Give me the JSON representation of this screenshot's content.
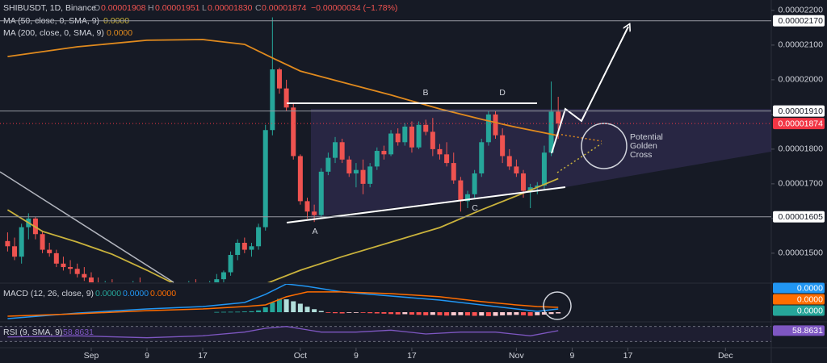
{
  "chart_data": {
    "type": "candlestick",
    "header": {
      "symbol": "SHIBUSDT, 1D, Binance",
      "ohlc": [
        {
          "key": "O",
          "value": "0.00001908"
        },
        {
          "key": "H",
          "value": "0.00001951"
        },
        {
          "key": "L",
          "value": "0.00001830"
        },
        {
          "key": "C",
          "value": "0.00001874"
        }
      ],
      "change": "−0.00000034 (−1.78%)"
    },
    "xlim": [
      -1.09,
      109.57
    ],
    "xticks": [
      {
        "value": 12,
        "label": "Sep"
      },
      {
        "value": 20,
        "label": "9"
      },
      {
        "value": 28,
        "label": "17"
      },
      {
        "value": 42,
        "label": "Oct"
      },
      {
        "value": 50,
        "label": "9"
      },
      {
        "value": 58,
        "label": "17"
      },
      {
        "value": 73,
        "label": "Nov"
      },
      {
        "value": 81,
        "label": "9"
      },
      {
        "value": 89,
        "label": "17"
      },
      {
        "value": 103,
        "label": "Dec"
      }
    ],
    "ylim": [
      1.416e-05,
      2.23e-05
    ],
    "yticks": [
      {
        "value": 2.2e-05,
        "label": "0.00002200"
      },
      {
        "value": 2.1e-05,
        "label": "0.00002100"
      },
      {
        "value": 2e-05,
        "label": "0.00002000"
      },
      {
        "value": 1.9e-05,
        "label": "0.00001900"
      },
      {
        "value": 1.8e-05,
        "label": "0.00001800"
      },
      {
        "value": 1.7e-05,
        "label": "0.00001700"
      },
      {
        "value": 1.6e-05,
        "label": "0.00001600"
      },
      {
        "value": 1.5e-05,
        "label": "0.00001500"
      }
    ],
    "grid": false,
    "up_color": "#26a69a",
    "down_color": "#ef5350",
    "open": [
      1.535e-05,
      1.52e-05,
      1.49e-05,
      1.575e-05,
      1.6e-05,
      1.555e-05,
      1.51e-05,
      1.5e-05,
      1.47e-05,
      1.46e-05,
      1.455e-05,
      1.44e-05,
      1.43e-05,
      1.415e-05,
      1.4e-05,
      1.41e-05,
      1.405e-05,
      1.39e-05,
      1.4e-05,
      1.415e-05,
      1.4e-05,
      1.38e-05,
      1.395e-05,
      1.39e-05,
      1.37e-05,
      1.385e-05,
      1.395e-05,
      1.41e-05,
      1.4e-05,
      1.405e-05,
      1.41e-05,
      1.425e-05,
      1.445e-05,
      1.495e-05,
      1.53e-05,
      1.51e-05,
      1.52e-05,
      1.575e-05,
      1.855e-05,
      2.03e-05,
      1.975e-05,
      1.92e-05,
      1.78e-05,
      1.65e-05,
      1.62e-05,
      1.61e-05,
      1.735e-05,
      1.775e-05,
      1.82e-05,
      1.77e-05,
      1.73e-05,
      1.74e-05,
      1.7e-05,
      1.75e-05,
      1.795e-05,
      1.785e-05,
      1.845e-05,
      1.82e-05,
      1.865e-05,
      1.805e-05,
      1.87e-05,
      1.85e-05,
      1.8e-05,
      1.785e-05,
      1.76e-05,
      1.71e-05,
      1.65e-05,
      1.67e-05,
      1.73e-05,
      1.82e-05,
      1.9e-05,
      1.84e-05,
      1.78e-05,
      1.75e-05,
      1.73e-05,
      1.68e-05,
      1.69e-05,
      1.695e-05,
      1.79e-05,
      1.908e-05
    ],
    "high": [
      1.56e-05,
      1.545e-05,
      1.585e-05,
      1.615e-05,
      1.605e-05,
      1.565e-05,
      1.53e-05,
      1.51e-05,
      1.49e-05,
      1.48e-05,
      1.47e-05,
      1.46e-05,
      1.445e-05,
      1.43e-05,
      1.42e-05,
      1.425e-05,
      1.415e-05,
      1.41e-05,
      1.42e-05,
      1.43e-05,
      1.41e-05,
      1.4e-05,
      1.41e-05,
      1.4e-05,
      1.39e-05,
      1.405e-05,
      1.42e-05,
      1.425e-05,
      1.415e-05,
      1.42e-05,
      1.44e-05,
      1.45e-05,
      1.505e-05,
      1.54e-05,
      1.545e-05,
      1.53e-05,
      1.585e-05,
      1.87e-05,
      2.18e-05,
      2.035e-05,
      2e-05,
      1.93e-05,
      1.785e-05,
      1.66e-05,
      1.64e-05,
      1.745e-05,
      1.79e-05,
      1.835e-05,
      1.83e-05,
      1.78e-05,
      1.76e-05,
      1.77e-05,
      1.76e-05,
      1.805e-05,
      1.81e-05,
      1.855e-05,
      1.86e-05,
      1.875e-05,
      1.88e-05,
      1.88e-05,
      1.885e-05,
      1.89e-05,
      1.815e-05,
      1.82e-05,
      1.79e-05,
      1.72e-05,
      1.68e-05,
      1.74e-05,
      1.83e-05,
      1.91e-05,
      1.91e-05,
      1.86e-05,
      1.8e-05,
      1.77e-05,
      1.74e-05,
      1.7e-05,
      1.705e-05,
      1.81e-05,
      1.995e-05,
      1.951e-05
    ],
    "low": [
      1.505e-05,
      1.48e-05,
      1.47e-05,
      1.54e-05,
      1.54e-05,
      1.5e-05,
      1.49e-05,
      1.46e-05,
      1.45e-05,
      1.44e-05,
      1.43e-05,
      1.42e-05,
      1.4e-05,
      1.39e-05,
      1.385e-05,
      1.395e-05,
      1.38e-05,
      1.375e-05,
      1.39e-05,
      1.395e-05,
      1.37e-05,
      1.365e-05,
      1.38e-05,
      1.36e-05,
      1.355e-05,
      1.375e-05,
      1.385e-05,
      1.39e-05,
      1.385e-05,
      1.395e-05,
      1.4e-05,
      1.41e-05,
      1.435e-05,
      1.48e-05,
      1.5e-05,
      1.49e-05,
      1.51e-05,
      1.565e-05,
      1.84e-05,
      1.96e-05,
      1.91e-05,
      1.77e-05,
      1.64e-05,
      1.6e-05,
      1.59e-05,
      1.605e-05,
      1.725e-05,
      1.76e-05,
      1.76e-05,
      1.72e-05,
      1.69e-05,
      1.67e-05,
      1.69e-05,
      1.74e-05,
      1.77e-05,
      1.78e-05,
      1.81e-05,
      1.81e-05,
      1.79e-05,
      1.8e-05,
      1.84e-05,
      1.78e-05,
      1.77e-05,
      1.75e-05,
      1.7e-05,
      1.62e-05,
      1.63e-05,
      1.66e-05,
      1.72e-05,
      1.81e-05,
      1.83e-05,
      1.76e-05,
      1.74e-05,
      1.72e-05,
      1.66e-05,
      1.63e-05,
      1.67e-05,
      1.685e-05,
      1.78e-05,
      1.83e-05
    ],
    "close": [
      1.52e-05,
      1.49e-05,
      1.575e-05,
      1.6e-05,
      1.555e-05,
      1.51e-05,
      1.5e-05,
      1.47e-05,
      1.46e-05,
      1.455e-05,
      1.44e-05,
      1.43e-05,
      1.415e-05,
      1.4e-05,
      1.41e-05,
      1.405e-05,
      1.39e-05,
      1.4e-05,
      1.415e-05,
      1.4e-05,
      1.38e-05,
      1.395e-05,
      1.39e-05,
      1.37e-05,
      1.385e-05,
      1.395e-05,
      1.41e-05,
      1.4e-05,
      1.405e-05,
      1.41e-05,
      1.425e-05,
      1.445e-05,
      1.495e-05,
      1.53e-05,
      1.51e-05,
      1.52e-05,
      1.575e-05,
      1.855e-05,
      2.03e-05,
      1.975e-05,
      1.92e-05,
      1.78e-05,
      1.65e-05,
      1.62e-05,
      1.61e-05,
      1.735e-05,
      1.775e-05,
      1.82e-05,
      1.77e-05,
      1.73e-05,
      1.74e-05,
      1.7e-05,
      1.75e-05,
      1.795e-05,
      1.785e-05,
      1.845e-05,
      1.82e-05,
      1.865e-05,
      1.805e-05,
      1.87e-05,
      1.85e-05,
      1.8e-05,
      1.785e-05,
      1.76e-05,
      1.71e-05,
      1.65e-05,
      1.67e-05,
      1.73e-05,
      1.82e-05,
      1.9e-05,
      1.84e-05,
      1.78e-05,
      1.75e-05,
      1.73e-05,
      1.68e-05,
      1.69e-05,
      1.695e-05,
      1.79e-05,
      1.908e-05,
      1.874e-05
    ],
    "series": [
      {
        "name": "MA (50, close, 0, SMA, 9)",
        "value_label": "0.0000",
        "color": "#c9b23c",
        "x": [
          0,
          5,
          10,
          15,
          20,
          24,
          30,
          36,
          42,
          48,
          55,
          62,
          68,
          73,
          79
        ],
        "values": [
          1.625e-05,
          1.563e-05,
          1.532e-05,
          1.497e-05,
          1.451e-05,
          1.411e-05,
          1.393e-05,
          1.404e-05,
          1.451e-05,
          1.49e-05,
          1.532e-05,
          1.574e-05,
          1.625e-05,
          1.665e-05,
          1.715e-05
        ]
      },
      {
        "name": "MA (200, close, 0, SMA, 9)",
        "value_label": "0.0000",
        "color": "#e08a1e",
        "x": [
          0,
          10,
          20,
          28,
          34,
          38,
          42,
          48,
          55,
          62,
          68,
          73,
          79
        ],
        "values": [
          2.067e-05,
          2.095e-05,
          2.114e-05,
          2.116e-05,
          2.102e-05,
          2.063e-05,
          2.025e-05,
          1.993e-05,
          1.956e-05,
          1.916e-05,
          1.886e-05,
          1.863e-05,
          1.839e-05
        ]
      }
    ],
    "price_lines": [
      {
        "value": 2.17e-05,
        "label": "0.00002170",
        "color": "#ffffff"
      },
      {
        "value": 1.91e-05,
        "label": "0.00001910",
        "color": "#ffffff"
      },
      {
        "value": 1.874e-05,
        "label": "0.00001874",
        "color": "#f23645"
      },
      {
        "value": 1.605e-05,
        "label": "0.00001605",
        "color": "#ffffff"
      }
    ],
    "annotations": {
      "points": [
        "A",
        "B",
        "C",
        "D"
      ],
      "golden_cross": [
        "Potential",
        "Golden",
        "Cross"
      ]
    },
    "macd": {
      "title": "MACD (12, 26, close, 9)",
      "ylim": [
        -7.3e-08,
        2.33e-07
      ],
      "lines": [
        {
          "name": "MACD",
          "color": "#2196f3",
          "value_label": "0.0000",
          "x": [
            0,
            10,
            20,
            28,
            34,
            37,
            40,
            43,
            48,
            55,
            62,
            68,
            73,
            76,
            79
          ],
          "values": [
            -5.3e-08,
            -7e-09,
            2.7e-08,
            4.7e-08,
            8e-08,
            1.47e-07,
            2.33e-07,
            2.13e-07,
            1.67e-07,
            1.33e-07,
            1e-07,
            6e-08,
            2.7e-08,
            7e-09,
            2.7e-08
          ]
        },
        {
          "name": "Signal",
          "color": "#ff6d00",
          "value_label": "0.0000",
          "x": [
            0,
            10,
            20,
            28,
            34,
            37,
            40,
            43,
            48,
            55,
            62,
            68,
            73,
            76,
            79
          ],
          "values": [
            -3.3e-08,
            -1.3e-08,
            1.3e-08,
            2.7e-08,
            4.7e-08,
            6e-08,
            1.27e-07,
            1.67e-07,
            1.67e-07,
            1.53e-07,
            1.27e-07,
            8.7e-08,
            6e-08,
            4.7e-08,
            4e-08
          ]
        }
      ],
      "histogram": {
        "name": "Histogram",
        "color": "#26a69a",
        "value_label": "0.0000",
        "x": [
          30,
          31,
          32,
          33,
          34,
          35,
          36,
          37,
          38,
          39,
          40,
          41,
          42,
          43,
          44,
          45,
          46,
          47,
          48,
          49,
          50,
          51,
          52,
          53,
          54,
          55,
          56,
          57,
          58,
          59,
          60,
          61,
          62,
          63,
          64,
          65,
          66,
          67,
          68,
          69,
          70,
          71,
          72,
          73,
          74,
          75,
          76,
          77,
          78,
          79
        ],
        "values": [
          2e-09,
          3e-09,
          3.5e-09,
          4e-09,
          6e-09,
          8e-09,
          1.5e-08,
          4e-08,
          8e-08,
          1.1e-07,
          1.06e-07,
          9e-08,
          7e-08,
          4.5e-08,
          2.5e-08,
          1e-08,
          -5e-09,
          -8e-09,
          -1e-08,
          -5e-09,
          -2e-09,
          -3e-09,
          -8e-09,
          -1e-08,
          -1.2e-08,
          -1.5e-08,
          -1.8e-08,
          -1.6e-08,
          -2e-08,
          -2.2e-08,
          -2.5e-08,
          -2.2e-08,
          -2.5e-08,
          -2.8e-08,
          -2.6e-08,
          -2.4e-08,
          -2.7e-08,
          -3e-08,
          -2.8e-08,
          -3.2e-08,
          -3e-08,
          -2.6e-08,
          -2.4e-08,
          -2.2e-08,
          -2.5e-08,
          -3e-08,
          -2.5e-08,
          -2e-08,
          -1.5e-08,
          -1e-08
        ]
      }
    },
    "rsi": {
      "title": "RSI (9, SMA, 9)",
      "value_label": "58.8631",
      "color": "#7e57c2",
      "ylim": [
        20,
        80
      ],
      "bands": [
        30,
        70
      ],
      "x": [
        0,
        10,
        20,
        28,
        34,
        37,
        40,
        45,
        50,
        55,
        60,
        65,
        70,
        75,
        79
      ],
      "values": [
        42,
        45,
        40,
        45,
        55,
        65,
        70,
        55,
        55,
        60,
        50,
        55,
        55,
        45,
        58.8631
      ]
    }
  }
}
